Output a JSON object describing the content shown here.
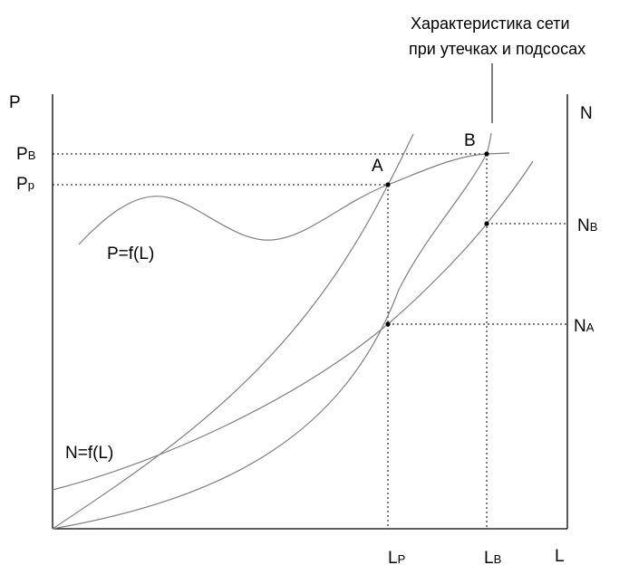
{
  "diagram": {
    "axes": {
      "left_label": "P",
      "right_label": "N",
      "bottom_label": "L"
    },
    "y_ticks": {
      "pb": {
        "main": "P",
        "sub": "B"
      },
      "pp": {
        "main": "P",
        "sub": "p"
      }
    },
    "x_ticks": {
      "lp": {
        "main": "L",
        "sub": "P"
      },
      "lb": {
        "main": "L",
        "sub": "B"
      }
    },
    "right_ticks": {
      "nb": {
        "main": "N",
        "sub": "B"
      },
      "na": {
        "main": "N",
        "sub": "A"
      }
    },
    "points": {
      "a": "A",
      "b": "B"
    },
    "curve_labels": {
      "pressure": "P=f(L)",
      "power": "N=f(L)"
    },
    "annotation": {
      "line1": "Характеристика сети",
      "line2": "при утечках и подсосах"
    },
    "colors": {
      "axis": "#000000",
      "curve": "#808080",
      "text": "#000000"
    }
  }
}
